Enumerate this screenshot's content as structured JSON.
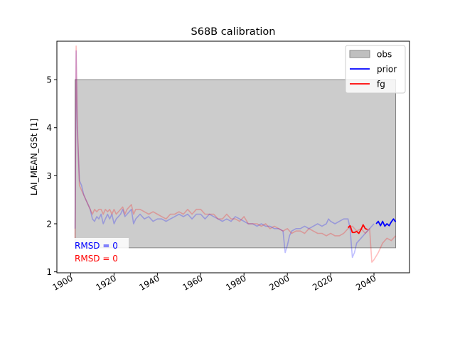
{
  "chart_data": {
    "type": "line",
    "title": "S68B calibration",
    "xlabel": "",
    "ylabel": "LAI_MEAN_GSt [1]",
    "xlim": [
      1893.6,
      2056.4
    ],
    "ylim": [
      0.98,
      5.8
    ],
    "xticks": [
      1900,
      1920,
      1940,
      1960,
      1980,
      2000,
      2020,
      2040
    ],
    "yticks": [
      1,
      2,
      3,
      4,
      5
    ],
    "grid": false,
    "legend_position": "top-right",
    "legend": [
      {
        "label": "obs",
        "kind": "patch",
        "color": "#bfbfbf"
      },
      {
        "label": "prior",
        "kind": "line",
        "color": "#0000ff"
      },
      {
        "label": "fg",
        "kind": "line",
        "color": "#ff0000"
      }
    ],
    "obs_band": {
      "x": [
        1902,
        2050
      ],
      "y": [
        1.5,
        5.0
      ],
      "fill": "#cccccc",
      "edge": "#888888"
    },
    "series": [
      {
        "name": "prior",
        "color": "#0000ff",
        "opacity": 0.25,
        "x": [
          1902,
          1902.5,
          1903,
          1904,
          1905,
          1906,
          1907,
          1908,
          1909,
          1910,
          1911,
          1912,
          1913,
          1914,
          1915,
          1916,
          1917,
          1918,
          1919,
          1920,
          1921,
          1922,
          1923,
          1924,
          1925,
          1926,
          1927,
          1928,
          1929,
          1930,
          1932,
          1934,
          1936,
          1938,
          1940,
          1942,
          1944,
          1946,
          1948,
          1950,
          1952,
          1954,
          1956,
          1958,
          1960,
          1962,
          1964,
          1966,
          1968,
          1970,
          1972,
          1974,
          1976,
          1978,
          1980,
          1982,
          1984,
          1986,
          1988,
          1990,
          1992,
          1994,
          1996,
          1998,
          1999,
          2000,
          2001,
          2002,
          2004,
          2006,
          2008,
          2010,
          2012,
          2014,
          2016,
          2018,
          2019,
          2020,
          2022,
          2024,
          2026,
          2028,
          2029,
          2030,
          2031,
          2032,
          2034,
          2036,
          2038,
          2040
        ],
        "y": [
          1.9,
          5.6,
          4.0,
          2.9,
          2.8,
          2.6,
          2.5,
          2.4,
          2.3,
          2.1,
          2.05,
          2.15,
          2.1,
          2.2,
          2.0,
          2.1,
          2.2,
          2.1,
          2.2,
          2.0,
          2.1,
          2.15,
          2.2,
          2.3,
          2.15,
          2.2,
          2.25,
          2.3,
          2.0,
          2.1,
          2.2,
          2.1,
          2.15,
          2.05,
          2.1,
          2.1,
          2.05,
          2.1,
          2.15,
          2.2,
          2.15,
          2.2,
          2.1,
          2.2,
          2.2,
          2.1,
          2.2,
          2.15,
          2.1,
          2.05,
          2.1,
          2.05,
          2.15,
          2.1,
          2.05,
          2.0,
          2.0,
          1.95,
          2.0,
          1.95,
          1.95,
          1.9,
          1.9,
          1.85,
          1.4,
          1.55,
          1.75,
          1.85,
          1.9,
          1.9,
          1.95,
          1.9,
          1.95,
          2.0,
          1.95,
          2.0,
          2.1,
          2.05,
          2.0,
          2.05,
          2.1,
          2.1,
          1.9,
          1.3,
          1.4,
          1.6,
          1.7,
          1.8,
          1.9,
          2.0
        ]
      },
      {
        "name": "fg",
        "color": "#ff0000",
        "opacity": 0.25,
        "x": [
          1902,
          1902.5,
          1903,
          1904,
          1905,
          1906,
          1907,
          1908,
          1909,
          1910,
          1911,
          1912,
          1913,
          1914,
          1915,
          1916,
          1917,
          1918,
          1919,
          1920,
          1921,
          1922,
          1923,
          1924,
          1925,
          1926,
          1927,
          1928,
          1929,
          1930,
          1932,
          1934,
          1936,
          1938,
          1940,
          1942,
          1944,
          1946,
          1948,
          1950,
          1952,
          1954,
          1956,
          1958,
          1960,
          1962,
          1964,
          1966,
          1968,
          1970,
          1972,
          1974,
          1976,
          1978,
          1980,
          1982,
          1984,
          1986,
          1988,
          1990,
          1992,
          1994,
          1996,
          1998,
          2000,
          2002,
          2004,
          2006,
          2008,
          2010,
          2012,
          2014,
          2016,
          2018,
          2020,
          2022,
          2024,
          2026,
          2028,
          2030,
          2032,
          2034,
          2036,
          2038,
          2039,
          2040,
          2042,
          2044,
          2046,
          2048,
          2050
        ],
        "y": [
          1.7,
          5.7,
          4.2,
          2.8,
          2.7,
          2.6,
          2.5,
          2.4,
          2.3,
          2.2,
          2.3,
          2.25,
          2.3,
          2.3,
          2.2,
          2.3,
          2.25,
          2.3,
          2.2,
          2.3,
          2.2,
          2.25,
          2.3,
          2.35,
          2.2,
          2.3,
          2.35,
          2.4,
          2.2,
          2.3,
          2.3,
          2.25,
          2.2,
          2.25,
          2.2,
          2.15,
          2.1,
          2.2,
          2.2,
          2.25,
          2.2,
          2.3,
          2.2,
          2.3,
          2.3,
          2.2,
          2.2,
          2.2,
          2.1,
          2.1,
          2.2,
          2.1,
          2.1,
          2.05,
          2.15,
          2.0,
          2.0,
          2.0,
          1.95,
          2.0,
          1.9,
          1.95,
          1.9,
          1.85,
          1.9,
          1.8,
          1.85,
          1.85,
          1.8,
          1.9,
          1.85,
          1.8,
          1.8,
          1.75,
          1.8,
          1.75,
          1.75,
          1.8,
          1.9,
          1.95,
          1.85,
          1.9,
          1.8,
          1.9,
          1.2,
          1.25,
          1.4,
          1.6,
          1.7,
          1.65,
          1.75
        ]
      },
      {
        "name": "fg-highlight",
        "color": "#ff0000",
        "opacity": 1,
        "x": [
          2028,
          2029,
          2030,
          2031,
          2032,
          2033,
          2034,
          2035,
          2036,
          2037
        ],
        "y": [
          1.92,
          1.96,
          1.82,
          1.82,
          1.84,
          1.8,
          1.88,
          1.98,
          1.9,
          1.88
        ]
      },
      {
        "name": "prior-highlight",
        "color": "#0000ff",
        "opacity": 1,
        "x": [
          2041,
          2042,
          2043,
          2044,
          2045,
          2046,
          2047,
          2048,
          2049,
          2050
        ],
        "y": [
          2.0,
          2.05,
          1.96,
          2.05,
          1.95,
          2.0,
          1.96,
          2.04,
          2.1,
          2.04
        ]
      }
    ],
    "annotations": [
      {
        "text": "RMSD = 0",
        "color": "#0000ff"
      },
      {
        "text": "RMSD = 0",
        "color": "#ff0000"
      }
    ]
  }
}
